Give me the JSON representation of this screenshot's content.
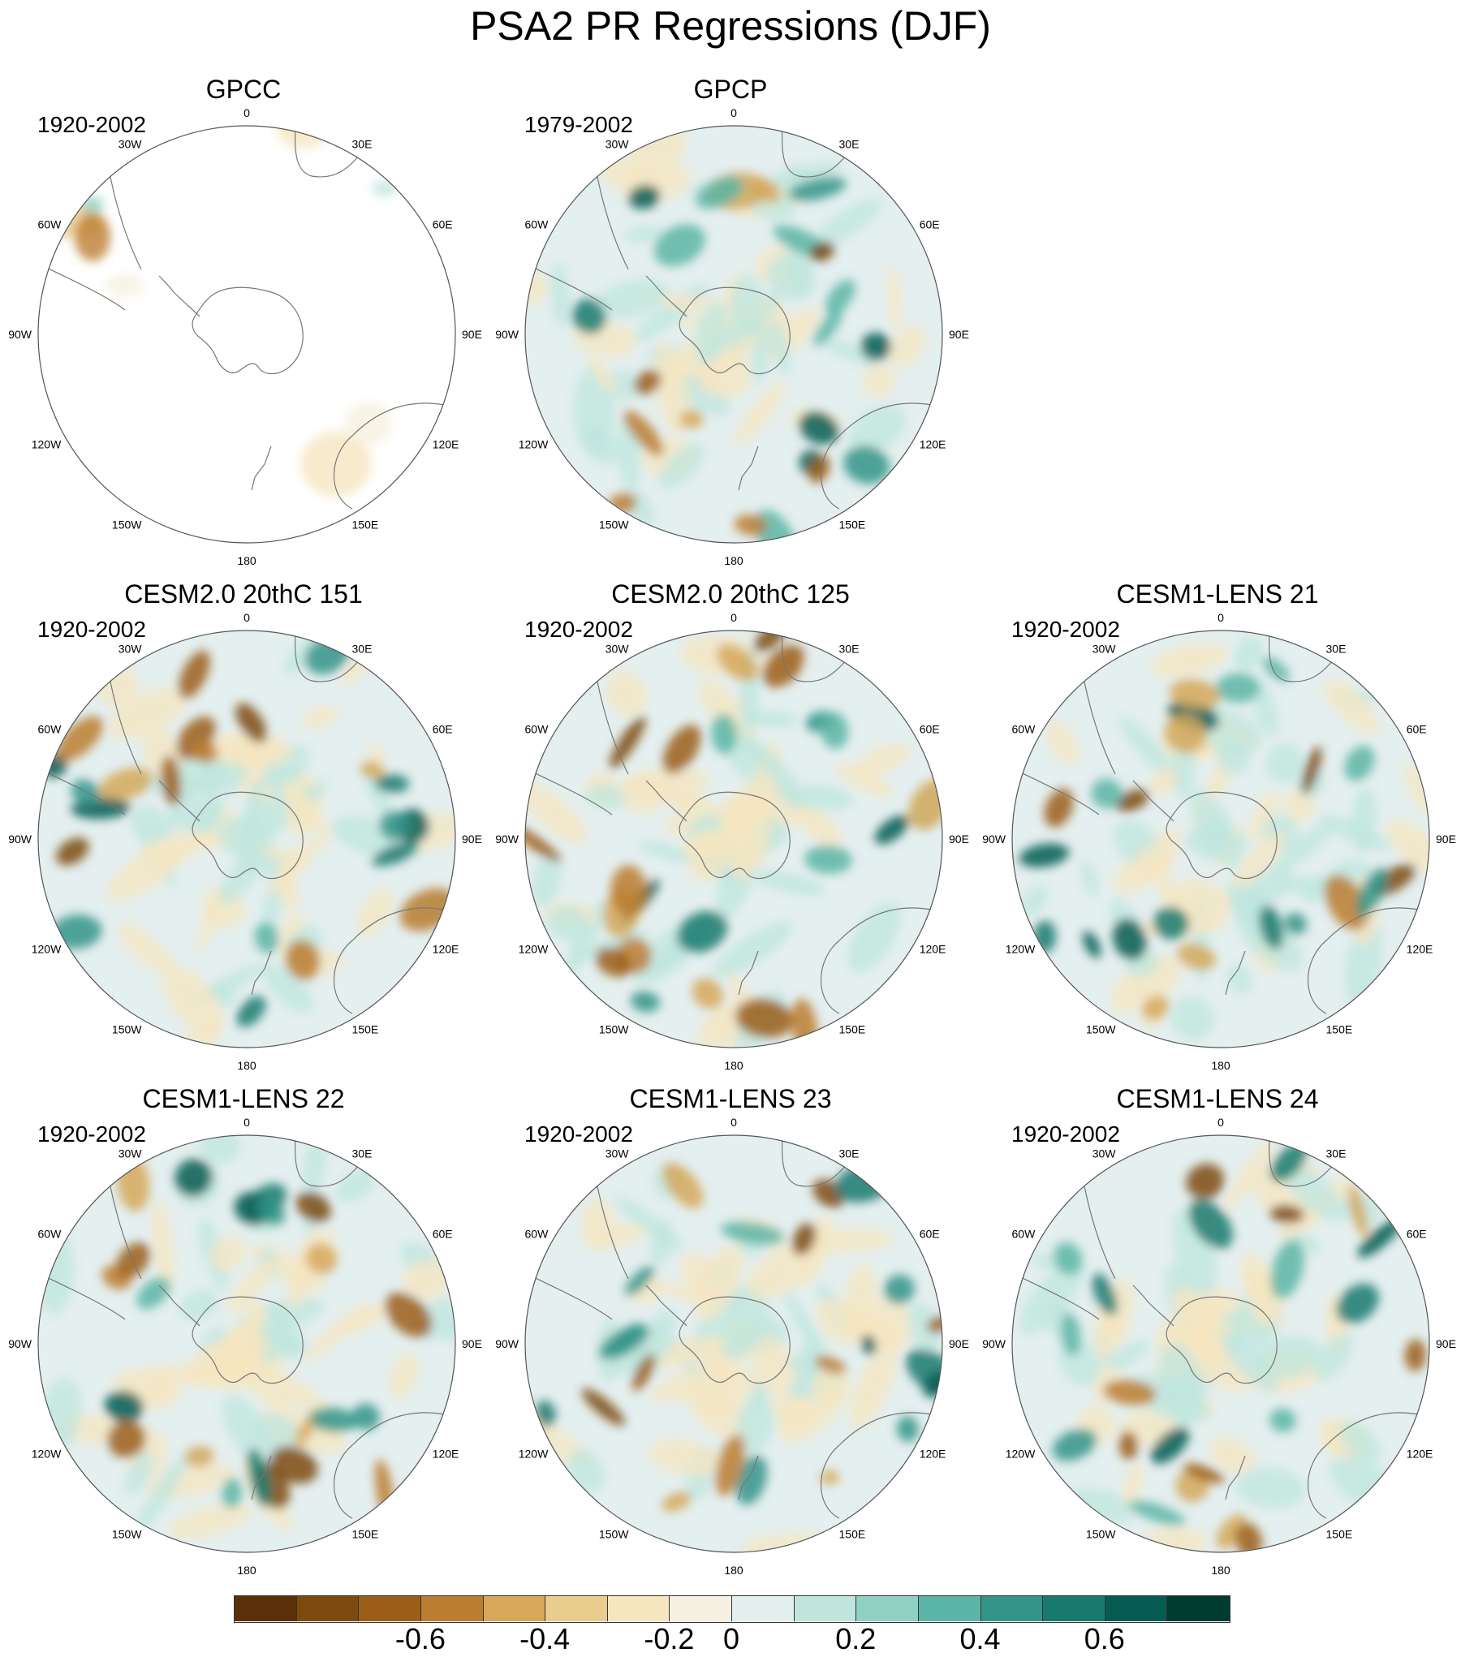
{
  "title": "PSA2 PR Regressions (DJF)",
  "longitude_labels": {
    "lon_0": "0",
    "lon_30e": "30E",
    "lon_60e": "60E",
    "lon_90e": "90E",
    "lon_120e": "120E",
    "lon_150e": "150E",
    "lon_180": "180",
    "lon_150w": "150W",
    "lon_120w": "120W",
    "lon_90w": "90W",
    "lon_60w": "60W",
    "lon_30w": "30W"
  },
  "panels": [
    {
      "title": "GPCC",
      "period": "1920-2002",
      "coverage": "land-only"
    },
    {
      "title": "GPCP",
      "period": "1979-2002",
      "coverage": "global"
    },
    {
      "title": "CESM2.0 20thC 151",
      "period": "1920-2002",
      "coverage": "global"
    },
    {
      "title": "CESM2.0 20thC 125",
      "period": "1920-2002",
      "coverage": "global"
    },
    {
      "title": "CESM1-LENS 21",
      "period": "1920-2002",
      "coverage": "global"
    },
    {
      "title": "CESM1-LENS 22",
      "period": "1920-2002",
      "coverage": "global"
    },
    {
      "title": "CESM1-LENS 23",
      "period": "1920-2002",
      "coverage": "global"
    },
    {
      "title": "CESM1-LENS 24",
      "period": "1920-2002",
      "coverage": "global"
    }
  ],
  "colorbar": {
    "colors": [
      "#5a3008",
      "#7d4a0e",
      "#9b5e16",
      "#bb7d2f",
      "#d5a85a",
      "#ebcc8f",
      "#f6e6c0",
      "#f5f0e1",
      "#e2efee",
      "#bfe5dd",
      "#8fd2c4",
      "#5cb5a6",
      "#339488",
      "#187a6f",
      "#065c52",
      "#003c30"
    ],
    "labels": [
      "-0.6",
      "-0.4",
      "-0.2",
      "0",
      "0.2",
      "0.4",
      "0.6"
    ]
  },
  "palette": {
    "sea_base": "#e4efef",
    "coast": "#777777",
    "outline": "#555555"
  }
}
